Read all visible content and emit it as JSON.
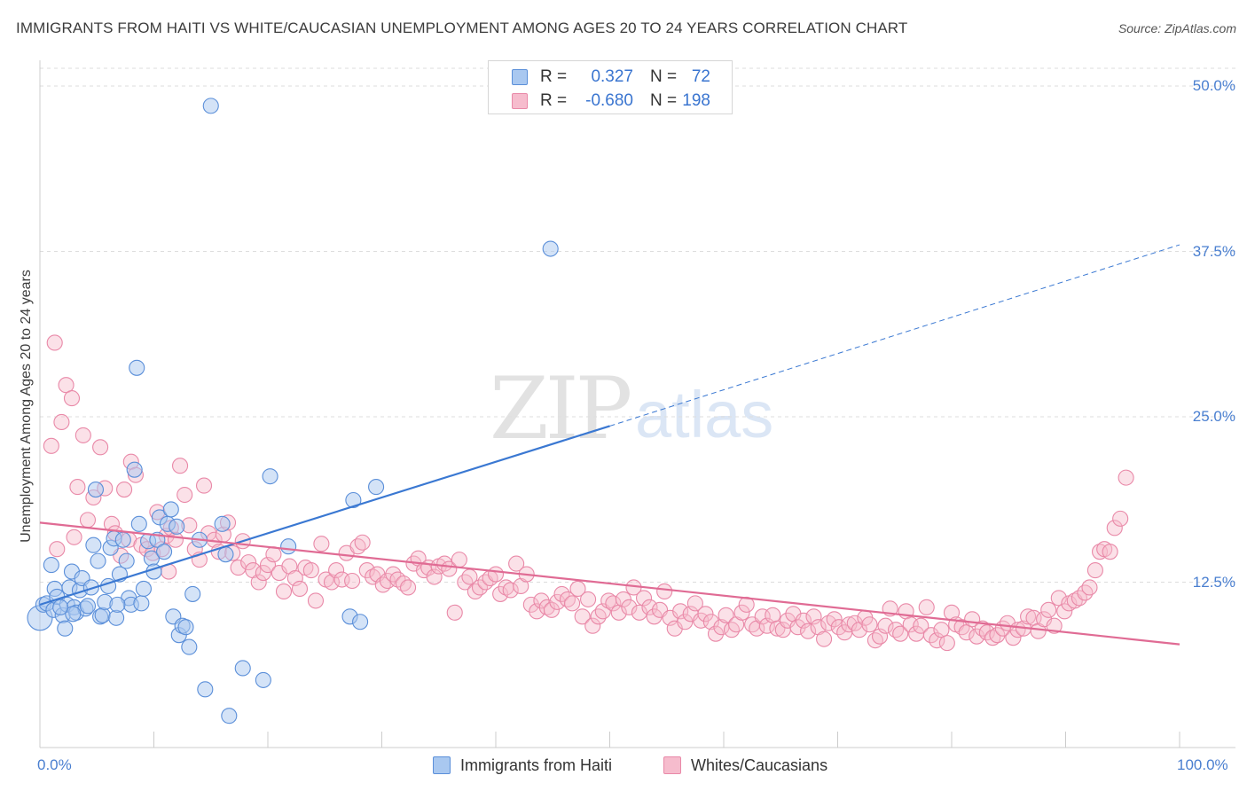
{
  "header": {
    "title": "IMMIGRANTS FROM HAITI VS WHITE/CAUCASIAN UNEMPLOYMENT AMONG AGES 20 TO 24 YEARS CORRELATION CHART",
    "source": "Source: ZipAtlas.com"
  },
  "watermark": {
    "zip": "ZIP",
    "atlas": "atlas"
  },
  "legend_top": {
    "rows": [
      {
        "r_label": "R =",
        "r_value": "0.327",
        "n_label": "N =",
        "n_value": "72"
      },
      {
        "r_label": "R =",
        "r_value": "-0.680",
        "n_label": "N =",
        "n_value": "198"
      }
    ]
  },
  "chart_data": {
    "type": "scatter",
    "title": "IMMIGRANTS FROM HAITI VS WHITE/CAUCASIAN UNEMPLOYMENT AMONG AGES 20 TO 24 YEARS CORRELATION CHART",
    "xlabel": "",
    "ylabel": "Unemployment Among Ages 20 to 24 years",
    "xlim": [
      0,
      100
    ],
    "ylim": [
      0,
      50
    ],
    "x_ticks": [
      "0.0%",
      "100.0%"
    ],
    "y_ticks": [
      {
        "value": 12.5,
        "label": "12.5%"
      },
      {
        "value": 25.0,
        "label": "25.0%"
      },
      {
        "value": 37.5,
        "label": "37.5%"
      },
      {
        "value": 50.0,
        "label": "50.0%"
      }
    ],
    "colors": {
      "blue_fill": "#a9c8f0",
      "blue_stroke": "#5b8fd9",
      "blue_line": "#3a78d2",
      "pink_fill": "#f6bccd",
      "pink_stroke": "#e989a8",
      "pink_line": "#e06b94"
    },
    "series": [
      {
        "name": "Immigrants from Haiti",
        "r": 0.327,
        "n": 72,
        "trendline": {
          "x0": 0,
          "y0": 10.8,
          "x1": 50,
          "y1": 24.3,
          "dashed_to_x": 100,
          "dashed_to_y": 38.0
        },
        "points": [
          [
            0.0,
            9.8
          ],
          [
            0.3,
            10.8
          ],
          [
            0.6,
            10.9
          ],
          [
            1.0,
            13.8
          ],
          [
            1.2,
            10.4
          ],
          [
            1.3,
            12.0
          ],
          [
            1.5,
            11.4
          ],
          [
            2.0,
            10.0
          ],
          [
            2.2,
            9.0
          ],
          [
            2.4,
            10.8
          ],
          [
            2.6,
            12.1
          ],
          [
            2.8,
            13.3
          ],
          [
            3.0,
            10.6
          ],
          [
            3.2,
            10.2
          ],
          [
            3.5,
            11.9
          ],
          [
            3.7,
            12.8
          ],
          [
            4.0,
            10.5
          ],
          [
            4.2,
            10.7
          ],
          [
            4.5,
            12.1
          ],
          [
            4.7,
            15.3
          ],
          [
            4.9,
            19.5
          ],
          [
            5.1,
            14.1
          ],
          [
            5.3,
            9.9
          ],
          [
            5.5,
            10.0
          ],
          [
            5.7,
            11.0
          ],
          [
            6.0,
            12.2
          ],
          [
            6.2,
            15.1
          ],
          [
            6.5,
            15.8
          ],
          [
            6.7,
            9.8
          ],
          [
            7.0,
            13.1
          ],
          [
            7.3,
            15.7
          ],
          [
            7.6,
            14.1
          ],
          [
            7.8,
            11.3
          ],
          [
            8.0,
            10.8
          ],
          [
            8.3,
            21.0
          ],
          [
            8.5,
            28.7
          ],
          [
            8.7,
            16.9
          ],
          [
            8.9,
            10.9
          ],
          [
            9.1,
            12.0
          ],
          [
            9.5,
            15.6
          ],
          [
            9.8,
            14.3
          ],
          [
            10.0,
            13.3
          ],
          [
            10.3,
            15.7
          ],
          [
            10.5,
            17.4
          ],
          [
            10.9,
            14.8
          ],
          [
            11.2,
            16.9
          ],
          [
            11.5,
            18.0
          ],
          [
            11.7,
            9.9
          ],
          [
            12.0,
            16.7
          ],
          [
            12.2,
            8.5
          ],
          [
            12.5,
            9.2
          ],
          [
            12.8,
            9.1
          ],
          [
            13.1,
            7.6
          ],
          [
            13.4,
            11.6
          ],
          [
            14.0,
            15.7
          ],
          [
            14.5,
            4.4
          ],
          [
            15.0,
            48.5
          ],
          [
            16.0,
            16.9
          ],
          [
            16.3,
            14.6
          ],
          [
            16.6,
            2.4
          ],
          [
            17.8,
            6.0
          ],
          [
            19.6,
            5.1
          ],
          [
            20.2,
            20.5
          ],
          [
            21.8,
            15.2
          ],
          [
            27.2,
            9.9
          ],
          [
            28.1,
            9.5
          ],
          [
            27.5,
            18.7
          ],
          [
            29.5,
            19.7
          ],
          [
            44.8,
            37.7
          ],
          [
            6.8,
            10.8
          ],
          [
            2.9,
            10.1
          ],
          [
            1.8,
            10.6
          ]
        ]
      },
      {
        "name": "Whites/Caucasians",
        "r": -0.68,
        "n": 198,
        "trendline": {
          "x0": 0,
          "y0": 17.0,
          "x1": 100,
          "y1": 7.8
        },
        "points": [
          [
            1.0,
            22.8
          ],
          [
            1.3,
            30.6
          ],
          [
            1.9,
            24.6
          ],
          [
            2.3,
            27.4
          ],
          [
            2.8,
            26.4
          ],
          [
            3.3,
            19.7
          ],
          [
            3.8,
            23.6
          ],
          [
            4.2,
            17.2
          ],
          [
            4.7,
            18.9
          ],
          [
            5.3,
            22.7
          ],
          [
            5.7,
            19.6
          ],
          [
            6.3,
            16.9
          ],
          [
            6.6,
            16.2
          ],
          [
            7.4,
            19.5
          ],
          [
            7.8,
            15.7
          ],
          [
            8.0,
            21.6
          ],
          [
            8.4,
            20.6
          ],
          [
            8.9,
            15.3
          ],
          [
            9.4,
            15.0
          ],
          [
            9.9,
            14.7
          ],
          [
            10.3,
            17.8
          ],
          [
            10.7,
            15.0
          ],
          [
            11.1,
            16.0
          ],
          [
            11.5,
            16.6
          ],
          [
            11.9,
            15.7
          ],
          [
            12.3,
            21.3
          ],
          [
            12.7,
            19.1
          ],
          [
            13.1,
            16.8
          ],
          [
            13.6,
            15.0
          ],
          [
            14.0,
            14.2
          ],
          [
            14.4,
            19.8
          ],
          [
            14.8,
            16.2
          ],
          [
            15.3,
            15.7
          ],
          [
            15.7,
            14.8
          ],
          [
            16.1,
            16.1
          ],
          [
            16.5,
            17.0
          ],
          [
            16.9,
            14.7
          ],
          [
            17.4,
            13.6
          ],
          [
            17.8,
            15.6
          ],
          [
            18.3,
            14.0
          ],
          [
            18.7,
            13.4
          ],
          [
            19.2,
            12.5
          ],
          [
            19.6,
            13.2
          ],
          [
            20.0,
            13.8
          ],
          [
            20.5,
            14.6
          ],
          [
            21.0,
            13.2
          ],
          [
            21.4,
            11.8
          ],
          [
            21.9,
            13.7
          ],
          [
            22.4,
            12.8
          ],
          [
            22.8,
            12.0
          ],
          [
            23.3,
            13.6
          ],
          [
            23.8,
            13.4
          ],
          [
            24.2,
            11.1
          ],
          [
            24.7,
            15.4
          ],
          [
            25.1,
            12.7
          ],
          [
            25.6,
            12.5
          ],
          [
            26.0,
            13.4
          ],
          [
            26.5,
            12.7
          ],
          [
            26.9,
            14.7
          ],
          [
            27.4,
            12.6
          ],
          [
            27.9,
            15.2
          ],
          [
            28.3,
            15.5
          ],
          [
            28.7,
            13.4
          ],
          [
            29.2,
            12.9
          ],
          [
            29.6,
            13.1
          ],
          [
            30.1,
            12.3
          ],
          [
            30.5,
            12.6
          ],
          [
            31.0,
            13.1
          ],
          [
            31.4,
            12.7
          ],
          [
            31.9,
            12.4
          ],
          [
            32.3,
            12.1
          ],
          [
            32.8,
            13.9
          ],
          [
            33.2,
            14.3
          ],
          [
            33.7,
            13.4
          ],
          [
            34.1,
            13.6
          ],
          [
            34.6,
            12.9
          ],
          [
            35.0,
            13.7
          ],
          [
            35.5,
            13.9
          ],
          [
            35.9,
            13.5
          ],
          [
            36.4,
            10.2
          ],
          [
            36.8,
            14.2
          ],
          [
            37.3,
            12.5
          ],
          [
            37.7,
            12.9
          ],
          [
            38.2,
            11.8
          ],
          [
            38.6,
            12.1
          ],
          [
            39.1,
            12.5
          ],
          [
            39.5,
            12.8
          ],
          [
            40.0,
            13.1
          ],
          [
            40.4,
            11.6
          ],
          [
            40.9,
            12.1
          ],
          [
            41.3,
            11.9
          ],
          [
            41.8,
            13.9
          ],
          [
            42.2,
            12.2
          ],
          [
            42.7,
            13.1
          ],
          [
            43.1,
            10.8
          ],
          [
            43.6,
            10.3
          ],
          [
            44.0,
            11.1
          ],
          [
            44.5,
            10.6
          ],
          [
            44.9,
            10.4
          ],
          [
            45.4,
            11.0
          ],
          [
            45.8,
            11.6
          ],
          [
            46.3,
            11.2
          ],
          [
            46.7,
            10.9
          ],
          [
            47.2,
            12.0
          ],
          [
            47.6,
            9.9
          ],
          [
            48.1,
            11.2
          ],
          [
            48.5,
            9.2
          ],
          [
            49.0,
            9.9
          ],
          [
            49.4,
            10.3
          ],
          [
            49.9,
            11.1
          ],
          [
            50.3,
            10.9
          ],
          [
            50.8,
            10.2
          ],
          [
            51.2,
            11.2
          ],
          [
            51.7,
            10.6
          ],
          [
            52.1,
            12.1
          ],
          [
            52.6,
            10.2
          ],
          [
            53.0,
            11.3
          ],
          [
            53.5,
            10.6
          ],
          [
            53.9,
            9.9
          ],
          [
            54.4,
            10.4
          ],
          [
            54.8,
            11.8
          ],
          [
            55.3,
            9.8
          ],
          [
            55.7,
            9.0
          ],
          [
            56.2,
            10.3
          ],
          [
            56.6,
            9.5
          ],
          [
            57.1,
            10.1
          ],
          [
            57.5,
            10.9
          ],
          [
            58.0,
            9.6
          ],
          [
            58.4,
            10.1
          ],
          [
            58.9,
            9.5
          ],
          [
            59.3,
            8.6
          ],
          [
            59.8,
            9.1
          ],
          [
            60.2,
            10.0
          ],
          [
            60.7,
            8.9
          ],
          [
            61.1,
            9.3
          ],
          [
            61.6,
            10.2
          ],
          [
            62.0,
            10.8
          ],
          [
            62.5,
            9.3
          ],
          [
            62.9,
            9.0
          ],
          [
            63.4,
            9.9
          ],
          [
            63.8,
            9.2
          ],
          [
            64.3,
            10.0
          ],
          [
            64.7,
            9.0
          ],
          [
            65.2,
            8.9
          ],
          [
            65.6,
            9.6
          ],
          [
            66.1,
            10.1
          ],
          [
            66.5,
            9.1
          ],
          [
            67.0,
            9.6
          ],
          [
            67.4,
            8.8
          ],
          [
            67.9,
            9.9
          ],
          [
            68.3,
            9.1
          ],
          [
            68.8,
            8.2
          ],
          [
            69.2,
            9.4
          ],
          [
            69.7,
            9.7
          ],
          [
            70.1,
            9.1
          ],
          [
            70.6,
            8.7
          ],
          [
            71.0,
            9.3
          ],
          [
            71.5,
            9.4
          ],
          [
            71.9,
            8.9
          ],
          [
            72.4,
            9.8
          ],
          [
            72.8,
            9.3
          ],
          [
            73.3,
            8.1
          ],
          [
            73.7,
            8.4
          ],
          [
            74.2,
            9.2
          ],
          [
            74.6,
            10.5
          ],
          [
            75.1,
            8.9
          ],
          [
            75.5,
            8.6
          ],
          [
            76.0,
            10.3
          ],
          [
            76.4,
            9.3
          ],
          [
            76.9,
            8.6
          ],
          [
            77.3,
            9.2
          ],
          [
            77.8,
            10.6
          ],
          [
            78.2,
            8.5
          ],
          [
            78.7,
            8.1
          ],
          [
            79.1,
            8.9
          ],
          [
            79.6,
            7.9
          ],
          [
            80.0,
            10.2
          ],
          [
            80.4,
            9.3
          ],
          [
            80.9,
            9.1
          ],
          [
            81.3,
            8.7
          ],
          [
            81.8,
            9.7
          ],
          [
            82.2,
            8.4
          ],
          [
            82.7,
            9.0
          ],
          [
            83.1,
            8.7
          ],
          [
            83.6,
            8.3
          ],
          [
            84.0,
            8.5
          ],
          [
            84.5,
            9.0
          ],
          [
            84.9,
            9.4
          ],
          [
            85.4,
            8.3
          ],
          [
            85.8,
            8.9
          ],
          [
            86.3,
            9.0
          ],
          [
            86.7,
            9.9
          ],
          [
            87.2,
            9.8
          ],
          [
            87.6,
            8.8
          ],
          [
            88.1,
            9.7
          ],
          [
            88.5,
            10.4
          ],
          [
            89.0,
            9.2
          ],
          [
            89.4,
            11.3
          ],
          [
            89.9,
            10.3
          ],
          [
            90.3,
            10.9
          ],
          [
            90.8,
            11.1
          ],
          [
            91.2,
            11.3
          ],
          [
            91.7,
            11.7
          ],
          [
            92.1,
            12.1
          ],
          [
            92.6,
            13.4
          ],
          [
            93.0,
            14.8
          ],
          [
            93.4,
            15.0
          ],
          [
            93.9,
            14.8
          ],
          [
            94.3,
            16.6
          ],
          [
            94.8,
            17.3
          ],
          [
            95.3,
            20.4
          ],
          [
            1.5,
            15.0
          ],
          [
            3.0,
            15.9
          ],
          [
            7.1,
            14.5
          ],
          [
            11.3,
            13.3
          ]
        ]
      }
    ]
  },
  "legend_bottom": {
    "items": [
      {
        "label": "Immigrants from Haiti"
      },
      {
        "label": "Whites/Caucasians"
      }
    ]
  }
}
